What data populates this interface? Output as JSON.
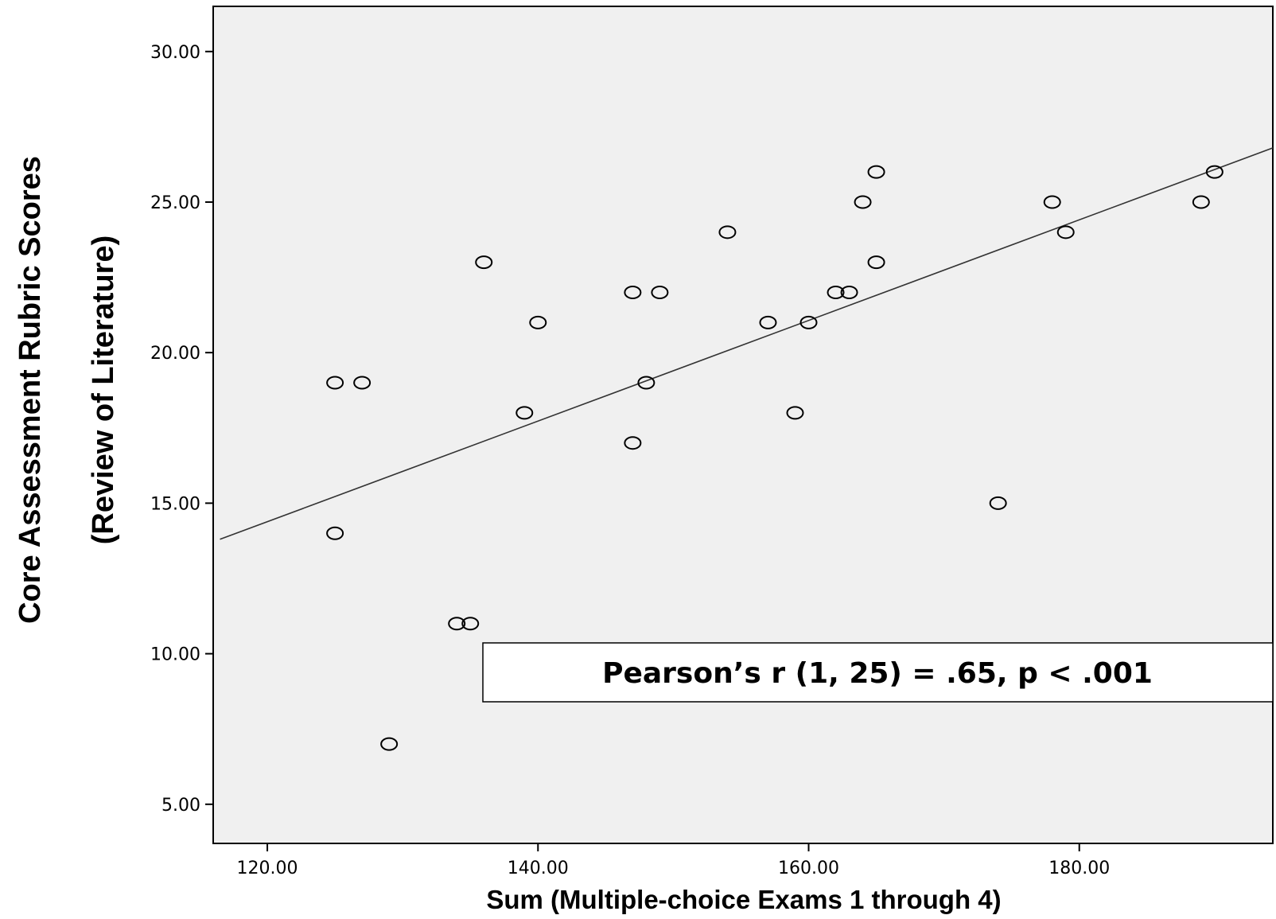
{
  "chart_data": {
    "type": "scatter",
    "xlabel": "Sum (Multiple-choice Exams 1 through 4)",
    "ylabel_lines": [
      "Core Assessment Rubric Scores",
      "(Review of Literature)"
    ],
    "xlim": [
      116,
      194.3
    ],
    "ylim": [
      3.7,
      31.5
    ],
    "x_ticks": [
      120,
      140,
      160,
      180
    ],
    "x_tick_labels": [
      "120.00",
      "140.00",
      "160.00",
      "180.00"
    ],
    "y_ticks": [
      5,
      10,
      15,
      20,
      25,
      30
    ],
    "y_tick_labels": [
      "5.00",
      "10.00",
      "15.00",
      "20.00",
      "25.00",
      "30.00"
    ],
    "grid": false,
    "marker": "open-circle",
    "plot_background": "#f0f0f0",
    "points": [
      {
        "x": 125,
        "y": 19
      },
      {
        "x": 127,
        "y": 19
      },
      {
        "x": 125,
        "y": 14
      },
      {
        "x": 129,
        "y": 7
      },
      {
        "x": 134,
        "y": 11
      },
      {
        "x": 135,
        "y": 11
      },
      {
        "x": 136,
        "y": 23
      },
      {
        "x": 139,
        "y": 18
      },
      {
        "x": 140,
        "y": 21
      },
      {
        "x": 147,
        "y": 22
      },
      {
        "x": 149,
        "y": 22
      },
      {
        "x": 147,
        "y": 17
      },
      {
        "x": 148,
        "y": 19
      },
      {
        "x": 154,
        "y": 24
      },
      {
        "x": 157,
        "y": 21
      },
      {
        "x": 159,
        "y": 18
      },
      {
        "x": 160,
        "y": 21
      },
      {
        "x": 162,
        "y": 22
      },
      {
        "x": 163,
        "y": 22
      },
      {
        "x": 164,
        "y": 25
      },
      {
        "x": 165,
        "y": 26
      },
      {
        "x": 165,
        "y": 23
      },
      {
        "x": 174,
        "y": 15
      },
      {
        "x": 178,
        "y": 25
      },
      {
        "x": 179,
        "y": 24
      },
      {
        "x": 189,
        "y": 25
      },
      {
        "x": 190,
        "y": 26
      }
    ],
    "fit_line": {
      "x": [
        116.5,
        194.3
      ],
      "y": [
        13.8,
        26.8
      ]
    },
    "annotation": "Pearson’s r (1, 25) = .65, p < .001"
  }
}
